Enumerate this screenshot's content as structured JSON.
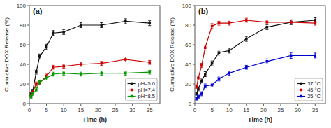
{
  "chart_data": [
    {
      "type": "line",
      "title": "(a)",
      "x_label": "Time (h)",
      "y_label": "Cumulative DOX Release (%)",
      "x": [
        0.5,
        1,
        2,
        3,
        5,
        7,
        10,
        15,
        21,
        28,
        35
      ],
      "xlim": [
        0,
        38
      ],
      "ylim": [
        0,
        100
      ],
      "xticks": [
        0,
        5,
        10,
        15,
        20,
        25,
        30,
        35
      ],
      "yticks": [
        0,
        20,
        40,
        60,
        80,
        100
      ],
      "grid": false,
      "legend": "lower right",
      "marker": "square",
      "series": [
        {
          "name": "pH=5.0",
          "color": "#111111",
          "values": [
            10,
            13,
            32,
            48,
            58,
            72,
            73,
            80,
            80,
            84,
            82
          ],
          "errors": [
            1.5,
            1.5,
            2,
            2.5,
            2.5,
            2.5,
            2.5,
            2.5,
            2.5,
            2.5,
            2.5
          ]
        },
        {
          "name": "pH=7.4",
          "color": "#cc0000",
          "values": [
            8,
            12,
            20,
            21,
            28,
            37,
            38,
            40,
            41,
            45,
            42
          ],
          "errors": [
            1.5,
            1.5,
            2,
            2,
            2,
            2,
            2,
            2,
            2,
            2.5,
            2
          ]
        },
        {
          "name": "pH=8.5",
          "color": "#009900",
          "values": [
            7,
            10,
            14,
            22,
            26,
            30,
            31,
            30,
            31,
            31,
            32
          ],
          "errors": [
            1.5,
            1.5,
            2,
            2,
            2,
            2,
            2,
            2,
            2,
            2,
            2
          ]
        }
      ]
    },
    {
      "type": "line",
      "title": "(b)",
      "x_label": "Time (h)",
      "y_label": "Cumulative DOX Release (%)",
      "x": [
        0.5,
        1,
        2,
        3,
        5,
        7,
        10,
        15,
        21,
        28,
        35
      ],
      "xlim": [
        0,
        38
      ],
      "ylim": [
        0,
        100
      ],
      "xticks": [
        0,
        5,
        10,
        15,
        20,
        25,
        30,
        35
      ],
      "yticks": [
        0,
        20,
        40,
        60,
        80,
        100
      ],
      "grid": false,
      "legend": "lower right",
      "marker": "square",
      "series": [
        {
          "name": "37 °C",
          "color": "#111111",
          "values": [
            10,
            15,
            23,
            30,
            41,
            52,
            54,
            66,
            78,
            83,
            85
          ],
          "errors": [
            1.5,
            2,
            2,
            2.5,
            2.5,
            2.5,
            2.5,
            2.5,
            2.5,
            2.5,
            2.5
          ]
        },
        {
          "name": "45 °C",
          "color": "#cc0000",
          "values": [
            17,
            26,
            39,
            57,
            79,
            82,
            82,
            85,
            83,
            83,
            82
          ],
          "errors": [
            1.5,
            2,
            2,
            2.5,
            2.5,
            2,
            2,
            2,
            2,
            2,
            2
          ]
        },
        {
          "name": "25 °C",
          "color": "#0000cc",
          "values": [
            5,
            7,
            10,
            18,
            19,
            25,
            31,
            37,
            43,
            49,
            49
          ],
          "errors": [
            1.5,
            1.5,
            2,
            2,
            2,
            2,
            2,
            2,
            2.5,
            3,
            2.5
          ]
        }
      ]
    }
  ]
}
